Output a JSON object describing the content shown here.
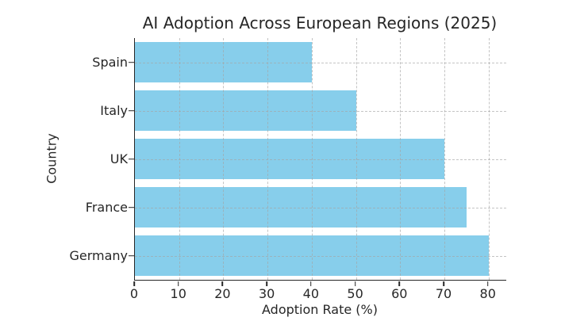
{
  "chart_data": {
    "type": "bar",
    "orientation": "horizontal",
    "title": "AI Adoption Across European Regions (2025)",
    "xlabel": "Adoption Rate (%)",
    "ylabel": "Country",
    "categories": [
      "Spain",
      "Italy",
      "UK",
      "France",
      "Germany"
    ],
    "values": [
      40,
      50,
      70,
      75,
      80
    ],
    "xticks": [
      0,
      10,
      20,
      30,
      40,
      50,
      60,
      70,
      80
    ],
    "xlim": [
      0,
      84
    ],
    "grid": true,
    "grid_style": "dashed",
    "legend": null,
    "colors": {
      "bar": "#87CEEB",
      "grid": "#a5a5a5",
      "text": "#262626",
      "spine": "#262626",
      "background": "#ffffff"
    }
  }
}
